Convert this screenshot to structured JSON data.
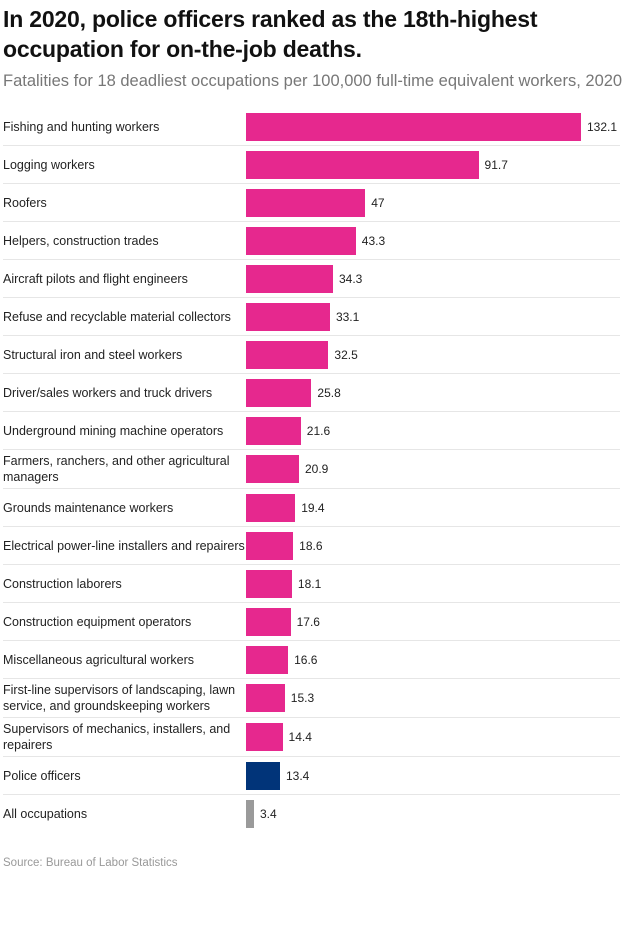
{
  "title": "In 2020, police officers ranked as the 18th-highest occupation for on-the-job deaths.",
  "subtitle": "Fatalities for 18 deadliest occupations per 100,000 full-time equivalent workers, 2020",
  "source": "Source: Bureau of Labor Statistics",
  "colors": {
    "default": "#e6288e",
    "highlight": "#013479",
    "baseline": "#9a9a9a"
  },
  "chart_data": {
    "type": "bar",
    "orientation": "horizontal",
    "title": "In 2020, police officers ranked as the 18th-highest occupation for on-the-job deaths.",
    "xlabel": "",
    "ylabel": "",
    "xlim": [
      0,
      132.1
    ],
    "categories": [
      "Fishing and hunting workers",
      "Logging workers",
      "Roofers",
      "Helpers, construction trades",
      "Aircraft pilots and flight engineers",
      "Refuse and recyclable material collectors",
      "Structural iron and steel workers",
      "Driver/sales workers and truck drivers",
      "Underground mining machine operators",
      "Farmers, ranchers, and other agricultural managers",
      "Grounds maintenance workers",
      "Electrical power-line installers and repairers",
      "Construction laborers",
      "Construction equipment operators",
      "Miscellaneous agricultural workers",
      "First-line supervisors of landscaping, lawn service, and groundskeeping workers",
      "Supervisors of mechanics, installers, and repairers",
      "Police officers",
      "All occupations"
    ],
    "values": [
      132.1,
      91.7,
      47,
      43.3,
      34.3,
      33.1,
      32.5,
      25.8,
      21.6,
      20.9,
      19.4,
      18.6,
      18.1,
      17.6,
      16.6,
      15.3,
      14.4,
      13.4,
      3.4
    ],
    "labels": [
      "132.1",
      "91.7",
      "47",
      "43.3",
      "34.3",
      "33.1",
      "32.5",
      "25.8",
      "21.6",
      "20.9",
      "19.4",
      "18.6",
      "18.1",
      "17.6",
      "16.6",
      "15.3",
      "14.4",
      "13.4",
      "3.4"
    ]
  }
}
